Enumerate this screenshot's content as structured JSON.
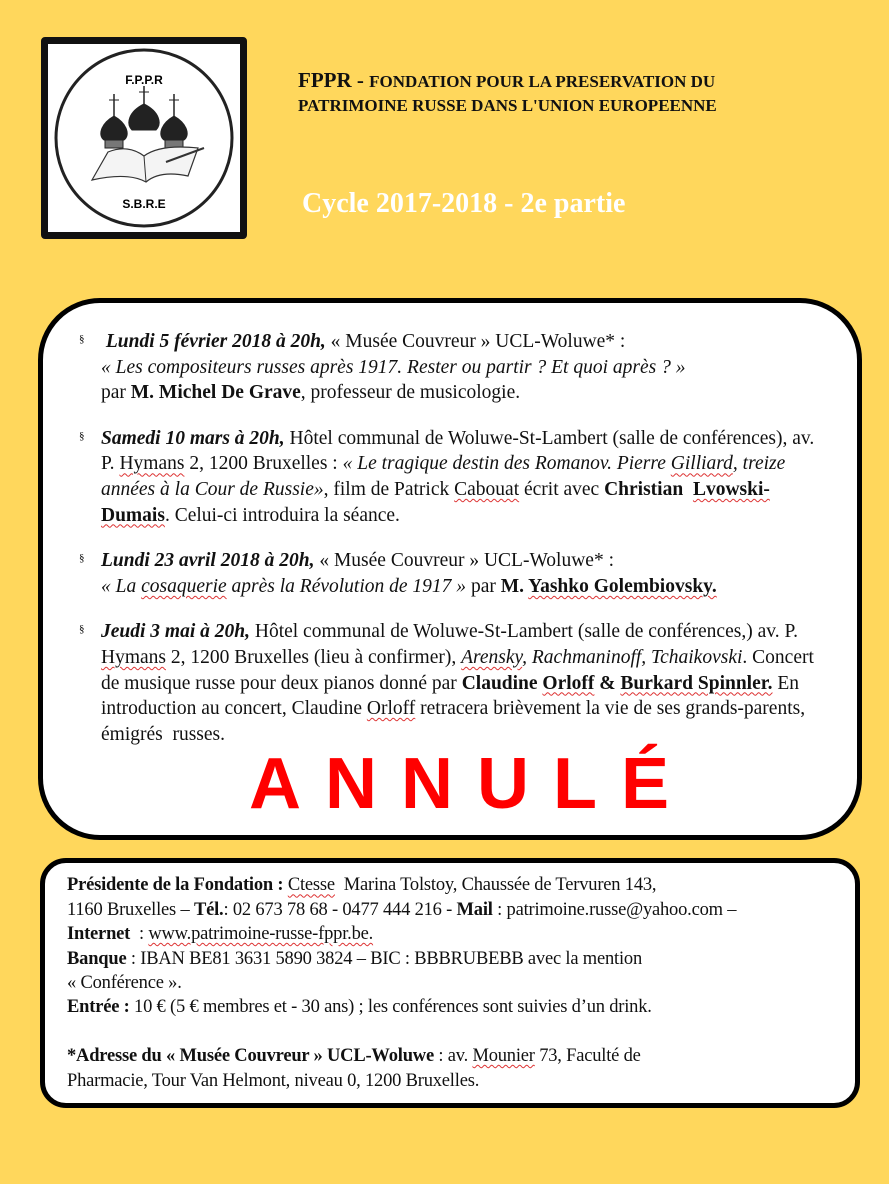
{
  "logo": {
    "top_text": "F.P.P.R",
    "bottom_text": "S.B.R.E",
    "image": "orthodox-domes-and-open-book"
  },
  "header": {
    "acronym": "FPPR - ",
    "line1": "FONDATION POUR LA PRESERVATION DU",
    "line2": "PATRIMOINE RUSSE DANS  L'UNION EUROPEENNE",
    "cycle": "Cycle  2017-2018 - 2e partie"
  },
  "bullet_symbol": "§",
  "events": [
    {
      "segments": [
        {
          "t": " Lundi 5 février 2018 à 20h,",
          "s": "bi"
        },
        {
          "t": " « Musée Couvreur » UCL-Woluwe* :",
          "s": ""
        },
        {
          "t": "\n« Les compositeurs russes après 1917. Rester ou partir ? Et quoi après ? »",
          "s": "i"
        },
        {
          "t": "\npar ",
          "s": ""
        },
        {
          "t": "M. Michel De Grave",
          "s": "b"
        },
        {
          "t": ", professeur de musicologie.",
          "s": ""
        }
      ]
    },
    {
      "segments": [
        {
          "t": "Samedi 10 mars à 20h,",
          "s": "bi"
        },
        {
          "t": " Hôtel communal de Woluwe-St-Lambert (salle de conférences), av. P. ",
          "s": ""
        },
        {
          "t": "Hymans",
          "s": "u"
        },
        {
          "t": " 2, 1200 Bruxelles : ",
          "s": ""
        },
        {
          "t": "« Le tragique destin des Romanov. Pierre ",
          "s": "i"
        },
        {
          "t": "Gilliard",
          "s": "i u"
        },
        {
          "t": ", treize années à la Cour de Russie»",
          "s": "i"
        },
        {
          "t": ", film de Patrick ",
          "s": ""
        },
        {
          "t": "Cabouat",
          "s": "u"
        },
        {
          "t": " écrit avec ",
          "s": ""
        },
        {
          "t": "Christian  ",
          "s": "b"
        },
        {
          "t": "Lvowski-Dumais",
          "s": "b u"
        },
        {
          "t": ". Celui-ci introduira la séance.",
          "s": ""
        }
      ]
    },
    {
      "segments": [
        {
          "t": "Lundi 23 avril 2018 à 20h,",
          "s": "bi"
        },
        {
          "t": " « Musée Couvreur » UCL-Woluwe* :",
          "s": ""
        },
        {
          "t": "\n« La ",
          "s": "i"
        },
        {
          "t": "cosaquerie",
          "s": "i u"
        },
        {
          "t": " après la Révolution de 1917 »",
          "s": "i"
        },
        {
          "t": " par ",
          "s": ""
        },
        {
          "t": "M. ",
          "s": "b"
        },
        {
          "t": "Yashko Golembiovsky.",
          "s": "b u"
        }
      ]
    },
    {
      "segments": [
        {
          "t": "Jeudi 3 mai à 20h,",
          "s": "bi"
        },
        {
          "t": " Hôtel communal de Woluwe-St-Lambert (salle de conférences,) av. P. ",
          "s": ""
        },
        {
          "t": "Hymans",
          "s": "u"
        },
        {
          "t": " 2, 1200 Bruxelles (lieu à confirmer), ",
          "s": ""
        },
        {
          "t": "Arensky",
          "s": "i u"
        },
        {
          "t": ", Rachmaninoff, Tchaikovski",
          "s": "i"
        },
        {
          "t": ". Concert de musique russe pour deux pianos donné par ",
          "s": ""
        },
        {
          "t": "Claudine ",
          "s": "b"
        },
        {
          "t": "Orloff",
          "s": "b u"
        },
        {
          "t": " & ",
          "s": "b"
        },
        {
          "t": "Burkard Spinnler.",
          "s": "b u"
        },
        {
          "t": " En introduction au concert, Claudine ",
          "s": ""
        },
        {
          "t": "Orloff",
          "s": "u"
        },
        {
          "t": " retracera brièvement la vie de ses grands-parents, émigrés  russes.",
          "s": ""
        }
      ]
    }
  ],
  "cancelled_stamp": {
    "text": "ANNULÉ",
    "color": "#FF0000"
  },
  "footer": {
    "segments": [
      {
        "t": "Présidente de la Fondation : ",
        "s": "b"
      },
      {
        "t": "Ctesse",
        "s": "u"
      },
      {
        "t": "  Marina Tolstoy, Chaussée de Tervuren 143,\n1160 Bruxelles – ",
        "s": ""
      },
      {
        "t": "Tél.",
        "s": "b"
      },
      {
        "t": ": 02 673 78 68 - 0477 444 216 - ",
        "s": ""
      },
      {
        "t": "Mail",
        "s": "b"
      },
      {
        "t": " : patrimoine.russe@yahoo.com –\n",
        "s": ""
      },
      {
        "t": "Internet",
        "s": "b"
      },
      {
        "t": "  : ",
        "s": ""
      },
      {
        "t": "www.patrimoine-russe-fppr.be.",
        "s": "u"
      },
      {
        "t": "\n",
        "s": ""
      },
      {
        "t": "Banque",
        "s": "b"
      },
      {
        "t": " : IBAN BE81 3631 5890 3824 – BIC : BBBRUBEBB avec la mention\n« Conférence ».\n",
        "s": ""
      },
      {
        "t": "Entrée :",
        "s": "b"
      },
      {
        "t": " 10 € (5 € membres et - 30 ans) ; les conférences sont suivies d’un drink.\n\n",
        "s": ""
      },
      {
        "t": "*Adresse du « Musée Couvreur » UCL-Woluwe",
        "s": "b"
      },
      {
        "t": " : av. ",
        "s": ""
      },
      {
        "t": "Mounier",
        "s": "u"
      },
      {
        "t": " 73, Faculté de\nPharmacie, Tour Van Helmont, niveau 0, 1200 Bruxelles.",
        "s": ""
      }
    ]
  },
  "colors": {
    "background": "#FFD75C",
    "box": "#FFFFFF",
    "border": "#000000",
    "cycle_text": "#FFFFFF"
  }
}
